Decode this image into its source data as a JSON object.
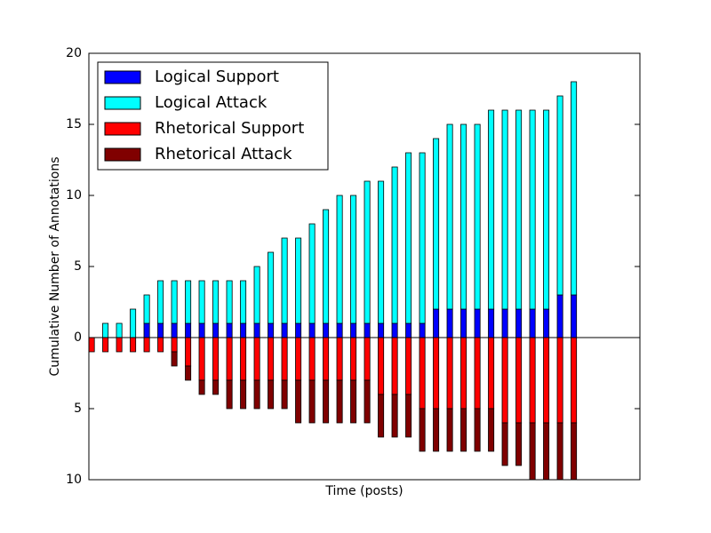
{
  "chart_data": {
    "type": "bar",
    "stacked": true,
    "xlabel": "Time (posts)",
    "ylabel": "Cumulative Number of Annotations",
    "x": [
      0,
      1,
      2,
      3,
      4,
      5,
      6,
      7,
      8,
      9,
      10,
      11,
      12,
      13,
      14,
      15,
      16,
      17,
      18,
      19,
      20,
      21,
      22,
      23,
      24,
      25,
      26,
      27,
      28,
      29,
      30,
      31,
      32,
      33,
      34,
      35
    ],
    "xlim": [
      0,
      40
    ],
    "ylim": [
      -10,
      20
    ],
    "yticks": [
      {
        "value": -10,
        "label": "10"
      },
      {
        "value": -5,
        "label": "5"
      },
      0,
      5,
      10,
      15,
      20
    ],
    "hline": 0,
    "legend": "upper left",
    "series": [
      {
        "name": "Logical Support",
        "color": "#0000ff",
        "values": [
          0,
          0,
          0,
          0,
          1,
          1,
          1,
          1,
          1,
          1,
          1,
          1,
          1,
          1,
          1,
          1,
          1,
          1,
          1,
          1,
          1,
          1,
          1,
          1,
          1,
          2,
          2,
          2,
          2,
          2,
          2,
          2,
          2,
          2,
          3,
          3
        ]
      },
      {
        "name": "Logical Attack",
        "color": "#00ffff",
        "values": [
          0,
          1,
          1,
          2,
          2,
          3,
          3,
          3,
          3,
          3,
          3,
          3,
          4,
          5,
          6,
          6,
          7,
          8,
          9,
          9,
          10,
          10,
          11,
          12,
          12,
          12,
          13,
          13,
          13,
          14,
          14,
          14,
          14,
          14,
          14,
          15
        ]
      },
      {
        "name": "Rhetorical Support",
        "color": "#ff0000",
        "values": [
          -1,
          -1,
          -1,
          -1,
          -1,
          -1,
          -1,
          -2,
          -3,
          -3,
          -3,
          -3,
          -3,
          -3,
          -3,
          -3,
          -3,
          -3,
          -3,
          -3,
          -3,
          -4,
          -4,
          -4,
          -5,
          -5,
          -5,
          -5,
          -5,
          -5,
          -6,
          -6,
          -6,
          -6,
          -6,
          -6
        ]
      },
      {
        "name": "Rhetorical Attack",
        "color": "#800000",
        "values": [
          0,
          0,
          0,
          0,
          0,
          0,
          -1,
          -1,
          -1,
          -1,
          -2,
          -2,
          -2,
          -2,
          -2,
          -3,
          -3,
          -3,
          -3,
          -3,
          -3,
          -3,
          -3,
          -3,
          -3,
          -3,
          -3,
          -3,
          -3,
          -3,
          -3,
          -3,
          -4,
          -4,
          -4,
          -4
        ]
      }
    ]
  }
}
